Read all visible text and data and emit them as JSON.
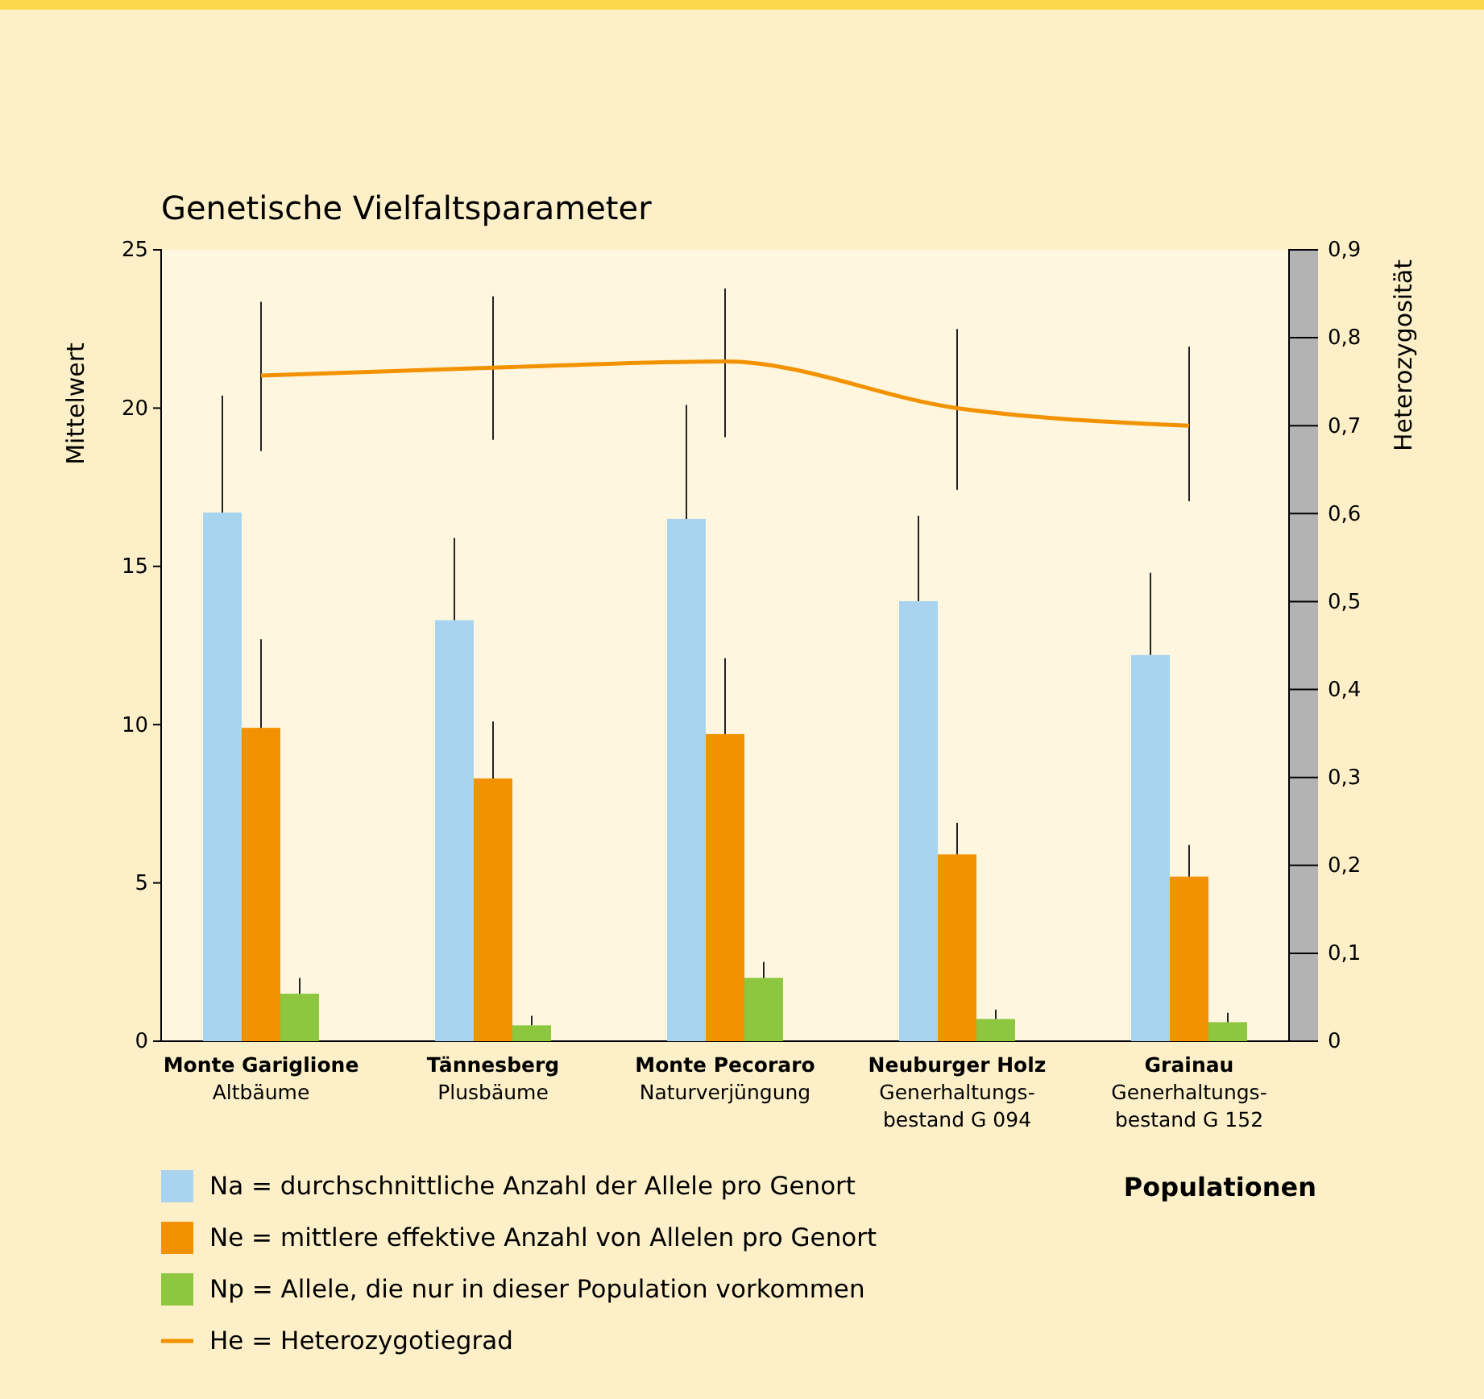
{
  "chart_data": {
    "type": "bar",
    "title": "Genetische Vielfaltsparameter",
    "xlabel": "Populationen",
    "ylabel": "Mittelwert",
    "y2label": "Heterozygosität",
    "categories": [
      "Monte Gariglione\nAltbäume",
      "Tännesberg\nPlusbäume",
      "Monte Pecoraro\nNaturverjüngung",
      "Neuburger Holz\nGenerhaltungs-\nbestand G 094",
      "Grainau\nGenerhaltungs-\nbestand G 152"
    ],
    "series": [
      {
        "name": "Na = durchschnittliche Anzahl der Allele pro Genort",
        "color": "#a8d4f0",
        "values": [
          16.7,
          13.3,
          16.5,
          13.9,
          12.2
        ],
        "errors": [
          [
            16.7,
            20.4
          ],
          [
            13.3,
            15.9
          ],
          [
            16.5,
            20.1
          ],
          [
            13.9,
            16.6
          ],
          [
            12.2,
            14.8
          ]
        ]
      },
      {
        "name": "Ne = mittlere effektive Anzahl von Allelen pro Genort",
        "color": "#f39200",
        "values": [
          9.9,
          8.3,
          9.7,
          5.9,
          5.2
        ],
        "errors": [
          [
            9.9,
            12.7
          ],
          [
            8.3,
            10.1
          ],
          [
            9.7,
            12.1
          ],
          [
            5.9,
            6.9
          ],
          [
            5.2,
            6.2
          ]
        ]
      },
      {
        "name": "Np = Allele, die nur in dieser Population vorkommen",
        "color": "#8dc63f",
        "values": [
          1.5,
          0.5,
          2.0,
          0.7,
          0.6
        ],
        "errors": [
          [
            1.5,
            2.0
          ],
          [
            0.5,
            0.8
          ],
          [
            2.0,
            2.5
          ],
          [
            0.7,
            1.0
          ],
          [
            0.6,
            0.9
          ]
        ]
      },
      {
        "name": "He = Heterozygotiegrad",
        "type": "line",
        "axis": "y2",
        "color": "#f39200",
        "values": [
          0.757,
          0.766,
          0.773,
          0.72,
          0.7
        ],
        "errors": [
          [
            0.671,
            0.841
          ],
          [
            0.684,
            0.847
          ],
          [
            0.687,
            0.856
          ],
          [
            0.627,
            0.81
          ],
          [
            0.614,
            0.79
          ]
        ]
      }
    ],
    "ylim": [
      0,
      25
    ],
    "yticks": [
      0,
      5,
      10,
      15,
      20,
      25
    ],
    "y2lim": [
      0,
      0.9
    ],
    "y2ticks": [
      0,
      {
        "value": 0.1,
        "label": "0,1"
      },
      {
        "value": 0.2,
        "label": "0,2"
      },
      {
        "value": 0.3,
        "label": "0,3"
      },
      {
        "value": 0.4,
        "label": "0,4"
      },
      {
        "value": 0.5,
        "label": "0,5"
      },
      {
        "value": 0.6,
        "label": "0,6"
      },
      {
        "value": 0.7,
        "label": "0,7"
      },
      {
        "value": 0.8,
        "label": "0,8"
      },
      {
        "value": 0.9,
        "label": "0,9"
      }
    ],
    "legend": "bottom left",
    "grid": false
  }
}
